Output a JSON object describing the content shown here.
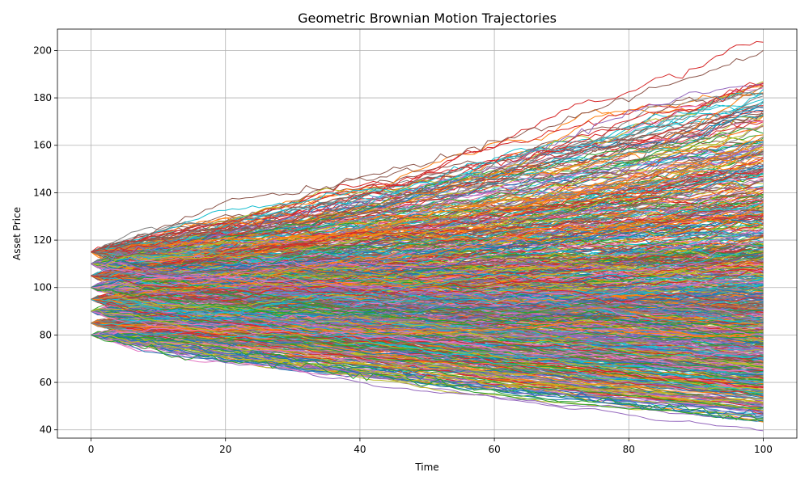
{
  "chart_data": {
    "type": "line",
    "title": "Geometric Brownian Motion Trajectories",
    "xlabel": "Time",
    "ylabel": "Asset Price",
    "xlim": [
      -5,
      105
    ],
    "ylim": [
      36.5,
      209
    ],
    "xticks": [
      0,
      20,
      40,
      60,
      80,
      100
    ],
    "yticks": [
      40,
      60,
      80,
      100,
      120,
      140,
      160,
      180,
      200
    ],
    "grid": true,
    "legend": "none",
    "n_steps": 100,
    "start_values": [
      80,
      85,
      90,
      95,
      100,
      105,
      110,
      115
    ],
    "envelope": {
      "upper_end": 200,
      "lower_end": 45
    },
    "highlighted_series": [
      {
        "color": "#8c564b",
        "x": [
          0,
          10,
          20,
          30,
          40,
          50,
          60,
          70,
          80,
          90,
          100
        ],
        "y": [
          115,
          124,
          136,
          140,
          146,
          152,
          162,
          170,
          180,
          189,
          200
        ]
      },
      {
        "color": "#9467bd",
        "x": [
          0,
          10,
          20,
          30,
          40,
          50,
          60,
          70,
          80,
          90,
          100
        ],
        "y": [
          110,
          117,
          122,
          130,
          136,
          142,
          150,
          162,
          174,
          182,
          186
        ]
      },
      {
        "color": "#d62728",
        "x": [
          0,
          10,
          20,
          30,
          40,
          50,
          60,
          70,
          80,
          90,
          100
        ],
        "y": [
          115,
          118,
          125,
          130,
          138,
          148,
          152,
          158,
          168,
          176,
          186
        ]
      },
      {
        "color": "#1f77b4",
        "x": [
          0,
          10,
          20,
          30,
          40,
          50,
          60,
          70,
          80,
          90,
          100
        ],
        "y": [
          80,
          77,
          74,
          70,
          66,
          62,
          58,
          55,
          51,
          48,
          46
        ]
      },
      {
        "color": "#2ca02c",
        "x": [
          0,
          10,
          20,
          30,
          40,
          50,
          60,
          70,
          80,
          90,
          100
        ],
        "y": [
          80,
          73,
          69,
          67,
          63,
          60,
          57,
          54,
          51,
          48,
          45
        ]
      }
    ],
    "palette": [
      "#1f77b4",
      "#ff7f0e",
      "#2ca02c",
      "#d62728",
      "#9467bd",
      "#8c564b",
      "#e377c2",
      "#7f7f7f",
      "#bcbd22",
      "#17becf"
    ]
  }
}
